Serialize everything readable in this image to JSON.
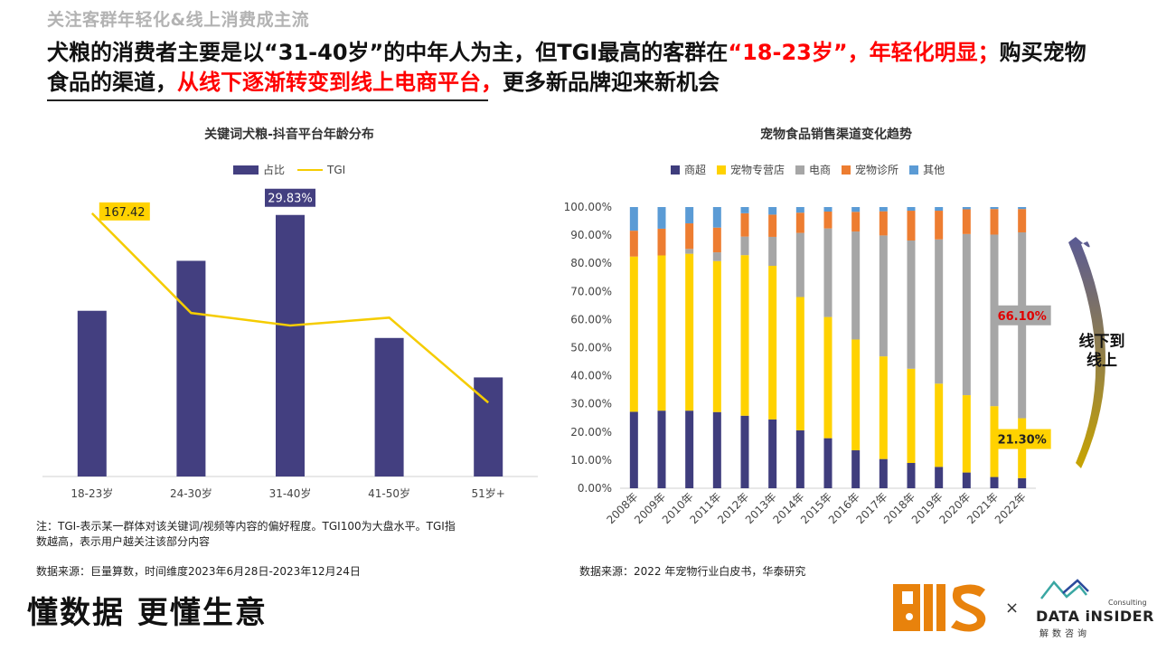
{
  "header": {
    "section_title": "关注客群年轻化&线上消费成主流",
    "headline": [
      {
        "text": "犬粮的消费者主要是以“31-40岁”的中年人为主，但TGI最高的客群在",
        "red": false
      },
      {
        "text": "“18-23岁”，年轻化明显；",
        "red": true
      },
      {
        "text": "购买宠物食品的渠道，",
        "red": false
      },
      {
        "text": "从线下逐渐转变到线上电商平台，",
        "red": true
      },
      {
        "text": "更多新品牌迎来新机会",
        "red": false
      }
    ]
  },
  "chart_data": [
    {
      "type": "bar",
      "title": "关键词犬粮-抖音平台年龄分布",
      "categories": [
        "18-23岁",
        "24-30岁",
        "31-40岁",
        "41-50岁",
        "51岁+"
      ],
      "series": [
        {
          "name": "占比",
          "kind": "bar",
          "color": "#433f80",
          "values": [
            18.9,
            24.6,
            29.83,
            15.8,
            11.3
          ]
        },
        {
          "name": "TGI",
          "kind": "line",
          "color": "#f5cc00",
          "values": [
            167.42,
            104,
            96,
            101,
            47
          ]
        }
      ],
      "bar_ylim": [
        0,
        33
      ],
      "line_ylim": [
        0,
        184
      ],
      "data_labels": [
        {
          "series": "TGI",
          "category": "18-23岁",
          "text": "167.42"
        },
        {
          "series": "占比",
          "category": "31-40岁",
          "text": "29.83%"
        }
      ],
      "legend": "top",
      "grid": false
    },
    {
      "type": "bar",
      "stacked": true,
      "title": "宠物食品销售渠道变化趋势",
      "categories": [
        "2008年",
        "2009年",
        "2010年",
        "2011年",
        "2012年",
        "2013年",
        "2014年",
        "2015年",
        "2016年",
        "2017年",
        "2018年",
        "2019年",
        "2020年",
        "2021年",
        "2022年"
      ],
      "series": [
        {
          "name": "商超",
          "color": "#3f3d7d",
          "values": [
            27.2,
            27.6,
            27.6,
            27.1,
            25.8,
            24.5,
            20.6,
            17.8,
            13.5,
            10.4,
            9.0,
            7.6,
            5.6,
            4.0,
            3.6
          ]
        },
        {
          "name": "宠物专营店",
          "color": "#ffd200",
          "values": [
            55.2,
            55.2,
            55.8,
            53.7,
            57.1,
            54.6,
            47.4,
            43.1,
            39.4,
            36.5,
            33.5,
            29.6,
            27.5,
            25.2,
            21.3
          ]
        },
        {
          "name": "电商",
          "color": "#a6a6a6",
          "values": [
            0.0,
            0.0,
            1.7,
            3.1,
            6.6,
            10.3,
            22.8,
            31.5,
            38.4,
            43.0,
            45.6,
            51.3,
            57.3,
            61.0,
            66.1
          ]
        },
        {
          "name": "宠物诊所",
          "color": "#ed7d31",
          "values": [
            9.2,
            9.5,
            9.1,
            8.8,
            8.3,
            7.9,
            7.2,
            6.0,
            7.0,
            8.6,
            10.6,
            10.2,
            8.8,
            9.1,
            8.3
          ]
        },
        {
          "name": "其他",
          "color": "#5b9bd5",
          "values": [
            8.4,
            7.7,
            5.8,
            7.3,
            2.2,
            2.7,
            2.0,
            1.6,
            1.7,
            1.5,
            1.3,
            1.3,
            0.8,
            0.7,
            0.7
          ]
        }
      ],
      "yticks": [
        "0.00%",
        "10.00%",
        "20.00%",
        "30.00%",
        "40.00%",
        "50.00%",
        "60.00%",
        "70.00%",
        "80.00%",
        "90.00%",
        "100.00%"
      ],
      "ylim": [
        0,
        100
      ],
      "data_labels": [
        {
          "series": "电商",
          "category": "2022年",
          "text": "66.10%"
        },
        {
          "series": "宠物专营店",
          "category": "2022年",
          "text": "21.30%"
        }
      ],
      "annotation": "线下到\n线上",
      "legend": "top",
      "grid": false
    }
  ],
  "left_chart": {
    "note": "注：TGI-表示某一群体对该关键词/视频等内容的偏好程度。TGI100为大盘水平。TGI指数越高，表示用户越关注该部分内容",
    "source": "数据来源：巨量算数，时间维度2023年6月28日-2023年12月24日"
  },
  "right_chart": {
    "source": "数据来源：2022 年宠物行业白皮书，华泰研究"
  },
  "footer": {
    "slogan": "懂数据 更懂生意",
    "logo_pis": "PIS",
    "times": "×",
    "di_name": "DATA iNSIDER",
    "di_sub": "解数咨询",
    "di_consult": "Consulting"
  }
}
